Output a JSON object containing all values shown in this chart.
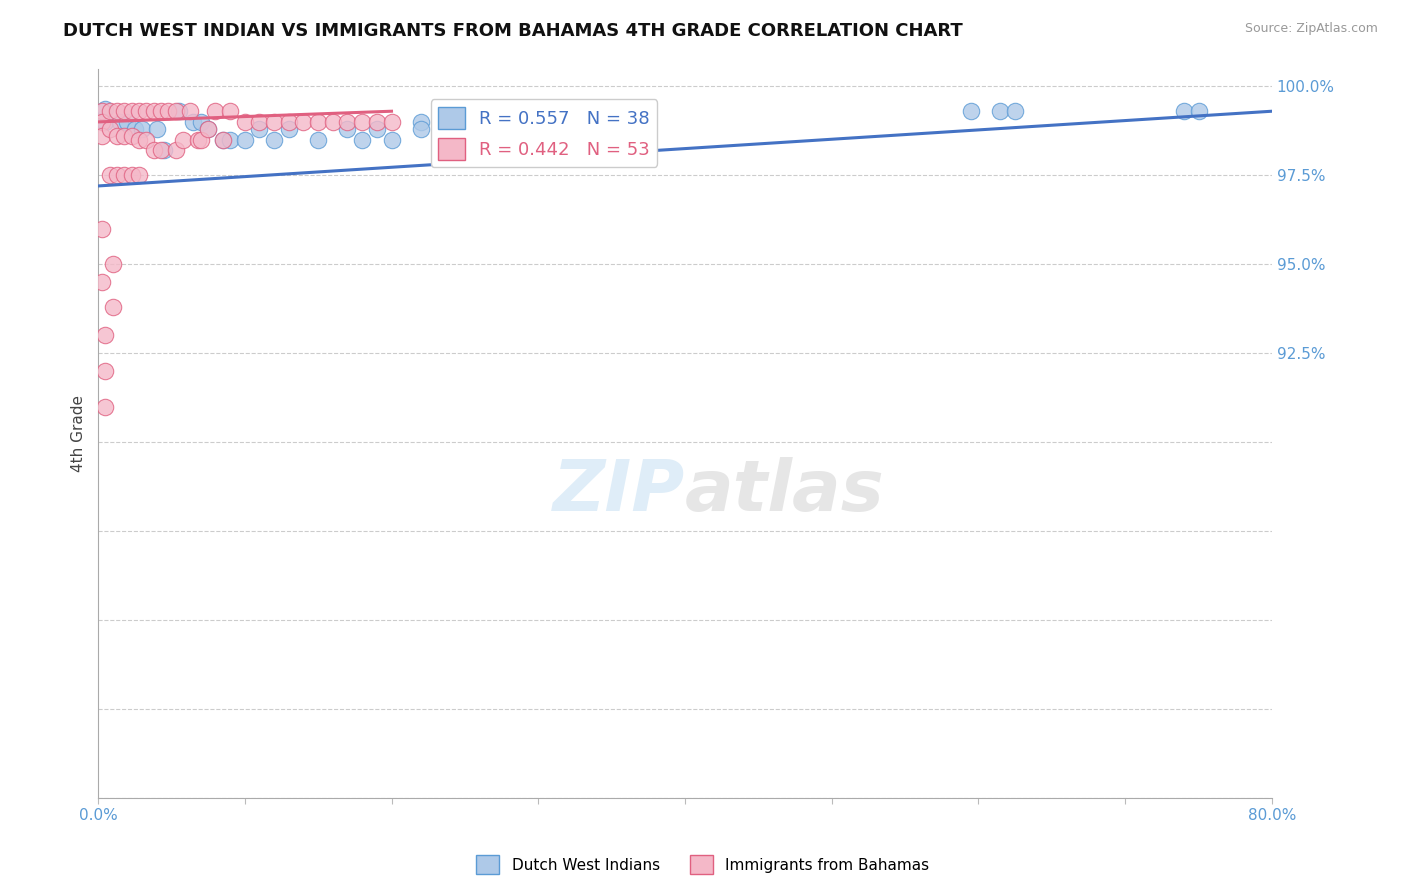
{
  "title": "DUTCH WEST INDIAN VS IMMIGRANTS FROM BAHAMAS 4TH GRADE CORRELATION CHART",
  "source_text": "Source: ZipAtlas.com",
  "ylabel": "4th Grade",
  "xlim": [
    0.0,
    0.8
  ],
  "ylim": [
    0.8,
    1.005
  ],
  "xticks": [
    0.0,
    0.1,
    0.2,
    0.3,
    0.4,
    0.5,
    0.6,
    0.7,
    0.8
  ],
  "xticklabels": [
    "0.0%",
    "",
    "",
    "",
    "",
    "",
    "",
    "",
    "80.0%"
  ],
  "ytick_positions": [
    0.8,
    0.825,
    0.85,
    0.875,
    0.9,
    0.925,
    0.95,
    0.975,
    1.0
  ],
  "ytick_labels": [
    "",
    "",
    "",
    "",
    "",
    "92.5%",
    "95.0%",
    "97.5%",
    "100.0%"
  ],
  "blue_fill": "#aec9e8",
  "blue_edge": "#5b9bd5",
  "pink_fill": "#f4b8c8",
  "pink_edge": "#e06080",
  "blue_line_color": "#4472c4",
  "pink_line_color": "#c0506a",
  "legend_blue": "R = 0.557   N = 38",
  "legend_pink": "R = 0.442   N = 53",
  "watermark": "ZIPatlas",
  "grid_color": "#cccccc",
  "tick_color": "#5b9bd5",
  "blue_scatter_x": [
    0.005,
    0.005,
    0.015,
    0.02,
    0.025,
    0.03,
    0.04,
    0.045,
    0.055,
    0.065,
    0.07,
    0.075,
    0.085,
    0.09,
    0.1,
    0.11,
    0.12,
    0.13,
    0.15,
    0.17,
    0.18,
    0.19,
    0.2,
    0.22,
    0.22,
    0.235,
    0.245,
    0.245,
    0.255,
    0.27,
    0.28,
    0.29,
    0.3,
    0.595,
    0.615,
    0.625,
    0.74,
    0.75
  ],
  "blue_scatter_y": [
    0.9935,
    0.99,
    0.99,
    0.99,
    0.988,
    0.988,
    0.988,
    0.982,
    0.993,
    0.99,
    0.99,
    0.988,
    0.985,
    0.985,
    0.985,
    0.988,
    0.985,
    0.988,
    0.985,
    0.988,
    0.985,
    0.988,
    0.985,
    0.99,
    0.988,
    0.99,
    0.99,
    0.988,
    0.99,
    0.99,
    0.99,
    0.99,
    0.985,
    0.993,
    0.993,
    0.993,
    0.993,
    0.993
  ],
  "pink_scatter_x": [
    0.003,
    0.003,
    0.003,
    0.003,
    0.003,
    0.008,
    0.008,
    0.008,
    0.013,
    0.013,
    0.013,
    0.018,
    0.018,
    0.018,
    0.023,
    0.023,
    0.023,
    0.028,
    0.028,
    0.028,
    0.033,
    0.033,
    0.038,
    0.038,
    0.043,
    0.043,
    0.048,
    0.053,
    0.053,
    0.058,
    0.063,
    0.068,
    0.07,
    0.075,
    0.08,
    0.085,
    0.09,
    0.1,
    0.11,
    0.12,
    0.13,
    0.14,
    0.15,
    0.16,
    0.17,
    0.18,
    0.19,
    0.2,
    0.01,
    0.01,
    0.005,
    0.005,
    0.005
  ],
  "pink_scatter_y": [
    0.993,
    0.99,
    0.986,
    0.96,
    0.945,
    0.993,
    0.988,
    0.975,
    0.993,
    0.986,
    0.975,
    0.993,
    0.986,
    0.975,
    0.993,
    0.986,
    0.975,
    0.993,
    0.985,
    0.975,
    0.993,
    0.985,
    0.993,
    0.982,
    0.993,
    0.982,
    0.993,
    0.993,
    0.982,
    0.985,
    0.993,
    0.985,
    0.985,
    0.988,
    0.993,
    0.985,
    0.993,
    0.99,
    0.99,
    0.99,
    0.99,
    0.99,
    0.99,
    0.99,
    0.99,
    0.99,
    0.99,
    0.99,
    0.95,
    0.938,
    0.93,
    0.92,
    0.91
  ],
  "blue_trend_x0": 0.0,
  "blue_trend_x1": 0.8,
  "blue_trend_y0": 0.972,
  "blue_trend_y1": 0.993,
  "pink_trend_x0": 0.0,
  "pink_trend_x1": 0.2,
  "pink_trend_y0": 0.99,
  "pink_trend_y1": 0.993
}
